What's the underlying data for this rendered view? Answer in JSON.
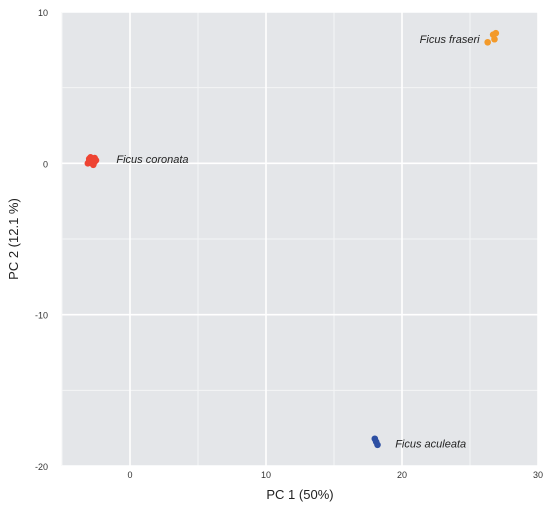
{
  "chart_data": {
    "type": "scatter",
    "xlabel": "PC 1 (50%)",
    "ylabel": "PC 2 (12.1  %)",
    "xlim": [
      -5,
      30
    ],
    "ylim": [
      -20,
      10
    ],
    "x_ticks": [
      0,
      10,
      20,
      30
    ],
    "y_ticks": [
      10,
      0,
      -10,
      -20
    ],
    "x_tick_labels": [
      "0",
      "10",
      "20",
      "30"
    ],
    "y_tick_labels": [
      "10",
      "0",
      "-10",
      "-20"
    ],
    "grid": true,
    "background": "#e4e6e9",
    "series": [
      {
        "name": "Ficus coronata",
        "color": "#ee4433",
        "points": [
          {
            "x": -3.0,
            "y": 0.3
          },
          {
            "x": -2.8,
            "y": 0.2
          },
          {
            "x": -2.6,
            "y": 0.1
          },
          {
            "x": -3.1,
            "y": 0.0
          },
          {
            "x": -2.9,
            "y": 0.4
          },
          {
            "x": -2.7,
            "y": -0.1
          },
          {
            "x": -2.5,
            "y": 0.2
          },
          {
            "x": -2.8,
            "y": 0.0
          },
          {
            "x": -3.0,
            "y": 0.15
          },
          {
            "x": -2.6,
            "y": 0.35
          }
        ]
      },
      {
        "name": "Ficus fraseri",
        "color": "#f39a2a",
        "points": [
          {
            "x": 26.7,
            "y": 8.5
          },
          {
            "x": 26.9,
            "y": 8.6
          },
          {
            "x": 26.8,
            "y": 8.2
          },
          {
            "x": 26.3,
            "y": 8.0
          }
        ]
      },
      {
        "name": "Ficus aculeata",
        "color": "#2d4fa3",
        "points": [
          {
            "x": 18.0,
            "y": -18.2
          },
          {
            "x": 18.1,
            "y": -18.4
          },
          {
            "x": 18.2,
            "y": -18.6
          }
        ]
      }
    ],
    "annotations": [
      {
        "text": "Ficus coronata",
        "x": -1.0,
        "y": 0.3
      },
      {
        "text": "Ficus fraseri",
        "x": 21.3,
        "y": 8.2
      },
      {
        "text": "Ficus aculeata",
        "x": 19.5,
        "y": -18.5
      }
    ]
  }
}
